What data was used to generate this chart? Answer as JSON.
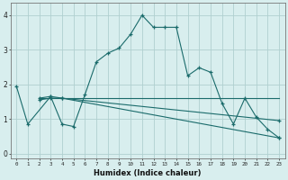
{
  "bg_color": "#d8eeee",
  "grid_color": "#b0d0d0",
  "line_color": "#1a6b6b",
  "line1_x": [
    0,
    1,
    3,
    4,
    5,
    6,
    7,
    8,
    9,
    10,
    11,
    12,
    13,
    14,
    15,
    16,
    17,
    18,
    19,
    20,
    21,
    22,
    23
  ],
  "line1_y": [
    1.95,
    0.85,
    1.65,
    0.85,
    0.78,
    1.7,
    2.65,
    2.9,
    3.05,
    3.45,
    4.0,
    3.65,
    3.65,
    3.65,
    2.25,
    2.48,
    2.35,
    1.45,
    0.85,
    1.6,
    1.05,
    0.7,
    0.45
  ],
  "line2_x": [
    2,
    3,
    4,
    23
  ],
  "line2_y": [
    1.55,
    1.6,
    1.6,
    0.45
  ],
  "line3_x": [
    2,
    3,
    4,
    23
  ],
  "line3_y": [
    1.6,
    1.65,
    1.6,
    0.95
  ],
  "line4_x": [
    2,
    23
  ],
  "line4_y": [
    1.6,
    1.6
  ],
  "xlabel": "Humidex (Indice chaleur)",
  "xlim": [
    -0.5,
    23.5
  ],
  "ylim": [
    -0.15,
    4.35
  ],
  "xticks": [
    0,
    1,
    2,
    3,
    4,
    5,
    6,
    7,
    8,
    9,
    10,
    11,
    12,
    13,
    14,
    15,
    16,
    17,
    18,
    19,
    20,
    21,
    22,
    23
  ],
  "yticks": [
    0,
    1,
    2,
    3,
    4
  ]
}
